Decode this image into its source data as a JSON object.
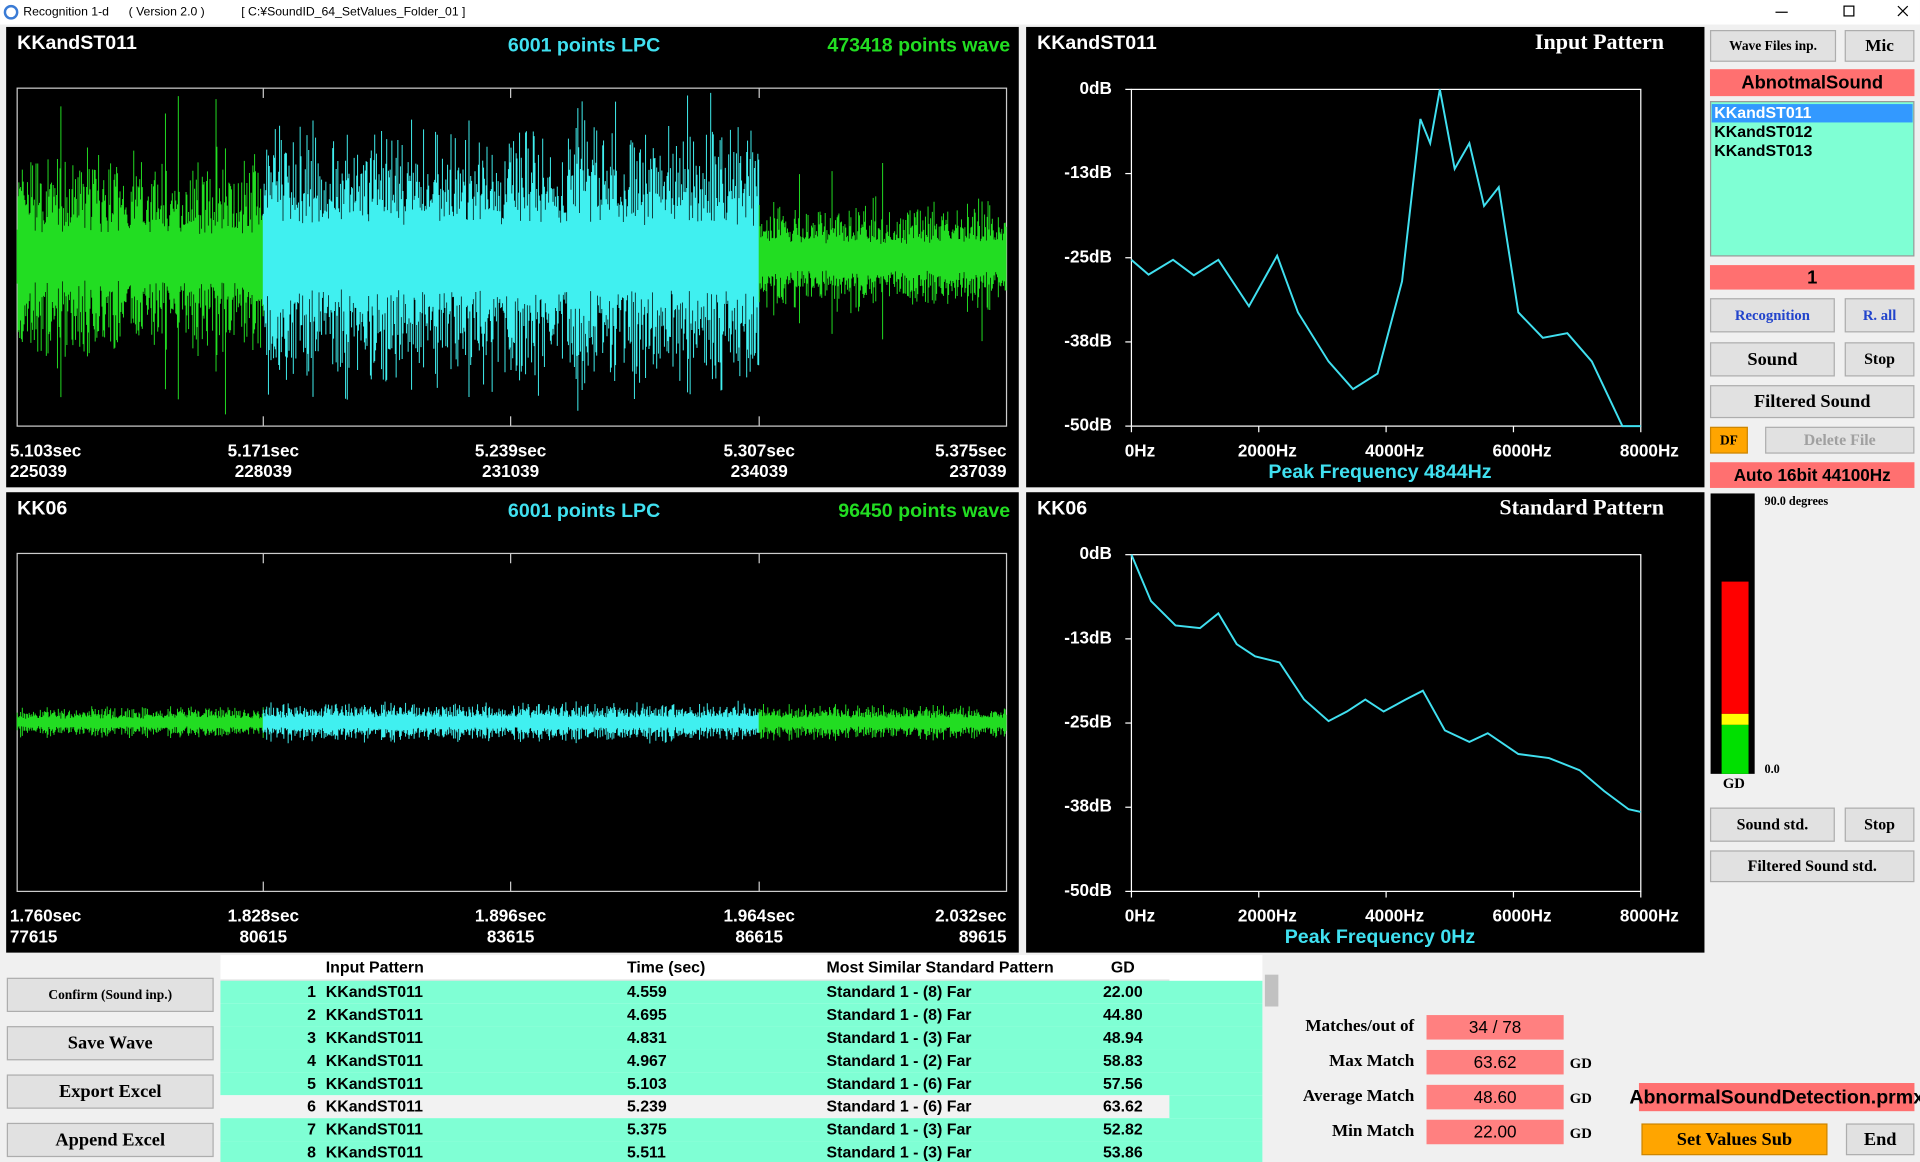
{
  "title_bar": {
    "app": "Recognition 1-d",
    "version": "( Version 2.0 )",
    "path": "[ C:¥SoundID_64_SetValues_Folder_01 ]"
  },
  "waves": [
    {
      "name": "KKandST011",
      "lpc": "6001 points LPC",
      "points": "473418 points wave",
      "time_labels": [
        "5.103sec",
        "5.171sec",
        "5.239sec",
        "5.307sec",
        "5.375sec"
      ],
      "sample_labels": [
        "225039",
        "228039",
        "231039",
        "234039",
        "237039"
      ]
    },
    {
      "name": "KK06",
      "lpc": "6001 points LPC",
      "points": "96450 points wave",
      "time_labels": [
        "1.760sec",
        "1.828sec",
        "1.896sec",
        "1.964sec",
        "2.032sec"
      ],
      "sample_labels": [
        "77615",
        "80615",
        "83615",
        "86615",
        "89615"
      ]
    }
  ],
  "chart_data": [
    {
      "type": "line",
      "name": "KKandST011",
      "title": "Input Pattern",
      "annotation": "Peak Frequency 4844Hz",
      "xlim": [
        0,
        8000
      ],
      "ylim": [
        -50,
        0
      ],
      "xticks": [
        {
          "value": 0,
          "label": "0Hz"
        },
        {
          "value": 2000,
          "label": "2000Hz"
        },
        {
          "value": 4000,
          "label": "4000Hz"
        },
        {
          "value": 6000,
          "label": "6000Hz"
        },
        {
          "value": 8000,
          "label": "8000Hz"
        }
      ],
      "yticks": [
        {
          "value": 0,
          "label": "0dB"
        },
        {
          "value": -12.5,
          "label": "-13dB"
        },
        {
          "value": -25,
          "label": "-25dB"
        },
        {
          "value": -37.5,
          "label": "-38dB"
        },
        {
          "value": -50,
          "label": "-50dB"
        }
      ],
      "series": [
        {
          "color": "#40e0f0",
          "x": [
            0,
            269,
            654,
            981,
            1365,
            1846,
            2288,
            2615,
            3096,
            3481,
            3865,
            4250,
            4538,
            4692,
            4844,
            5077,
            5308,
            5538,
            5769,
            6077,
            6462,
            6846,
            7231,
            7712,
            8000
          ],
          "values": [
            -25.3,
            -27.5,
            -25.3,
            -27.6,
            -25.3,
            -32.2,
            -24.7,
            -33.1,
            -40.4,
            -44.5,
            -42.2,
            -28.5,
            -4.4,
            -8,
            0,
            -11.8,
            -8,
            -17.3,
            -14.5,
            -33.1,
            -36.9,
            -36.2,
            -40.4,
            -50,
            -50
          ]
        }
      ]
    },
    {
      "type": "line",
      "name": "KK06",
      "title": "Standard Pattern",
      "annotation": "Peak Frequency 0Hz",
      "xlim": [
        0,
        8000
      ],
      "ylim": [
        -50,
        0
      ],
      "xticks": [
        {
          "value": 0,
          "label": "0Hz"
        },
        {
          "value": 2000,
          "label": "2000Hz"
        },
        {
          "value": 4000,
          "label": "4000Hz"
        },
        {
          "value": 6000,
          "label": "6000Hz"
        },
        {
          "value": 8000,
          "label": "8000Hz"
        }
      ],
      "yticks": [
        {
          "value": 0,
          "label": "0dB"
        },
        {
          "value": -12.5,
          "label": "-13dB"
        },
        {
          "value": -25,
          "label": "-25dB"
        },
        {
          "value": -37.5,
          "label": "-38dB"
        },
        {
          "value": -50,
          "label": "-50dB"
        }
      ],
      "series": [
        {
          "color": "#40e0f0",
          "x": [
            0,
            308,
            692,
            1077,
            1365,
            1654,
            1942,
            2327,
            2712,
            3096,
            3385,
            3673,
            3962,
            4308,
            4577,
            4923,
            5308,
            5596,
            6077,
            6558,
            7038,
            7423,
            7808,
            8000
          ],
          "values": [
            0,
            -6.9,
            -10.5,
            -10.9,
            -8.7,
            -13.3,
            -15.1,
            -16,
            -21.5,
            -24.7,
            -23.3,
            -21.5,
            -23.3,
            -21.5,
            -20.2,
            -26.1,
            -27.8,
            -26.5,
            -29.6,
            -30.2,
            -32,
            -35.1,
            -37.8,
            -38.2
          ]
        }
      ]
    }
  ],
  "sidebar": {
    "wave_files": "Wave Files inp.",
    "mic": "Mic",
    "category": "AbnotmalSound",
    "files": [
      "KKandST011",
      "KKandST012",
      "KKandST013"
    ],
    "index": "1",
    "recognition": "Recognition",
    "r_all": "R. all",
    "sound": "Sound",
    "stop": "Stop",
    "filtered": "Filtered Sound",
    "df": "DF",
    "delete": "Delete File",
    "format": "Auto   16bit   44100Hz",
    "meter_top": "90.0 degrees",
    "meter_bottom": "0.0",
    "meter_unit": "GD",
    "sound_std": "Sound std.",
    "stop_std": "Stop",
    "filtered_std": "Filtered Sound std."
  },
  "actions": [
    "Confirm (Sound inp.)",
    "Save Wave",
    "Export Excel",
    "Append Excel"
  ],
  "table": {
    "columns": [
      "Input Pattern",
      "Time (sec)",
      "Most Similar Standard Pattern",
      "GD"
    ],
    "rows": [
      [
        "1",
        "KKandST011",
        "4.559",
        "Standard 1 - (8) Far",
        "22.00"
      ],
      [
        "2",
        "KKandST011",
        "4.695",
        "Standard 1 - (8) Far",
        "44.80"
      ],
      [
        "3",
        "KKandST011",
        "4.831",
        "Standard 1 - (3) Far",
        "48.94"
      ],
      [
        "4",
        "KKandST011",
        "4.967",
        "Standard 1 - (2) Far",
        "58.83"
      ],
      [
        "5",
        "KKandST011",
        "5.103",
        "Standard 1 - (6) Far",
        "57.56"
      ],
      [
        "6",
        "KKandST011",
        "5.239",
        "Standard 1 - (6) Far",
        "63.62"
      ],
      [
        "7",
        "KKandST011",
        "5.375",
        "Standard 1 - (3) Far",
        "52.82"
      ],
      [
        "8",
        "KKandST011",
        "5.511",
        "Standard 1 - (3) Far",
        "53.86"
      ]
    ]
  },
  "stats": [
    {
      "label": "Matches/out of",
      "value": "34 / 78"
    },
    {
      "label": "Max Match",
      "value": "63.62",
      "unit": "GD"
    },
    {
      "label": "Average Match",
      "value": "48.60",
      "unit": "GD"
    },
    {
      "label": "Min Match",
      "value": "22.00",
      "unit": "GD"
    }
  ],
  "settings_file": "AbnormalSoundDetection.prmx",
  "set_values": "Set Values Sub",
  "end": "End"
}
